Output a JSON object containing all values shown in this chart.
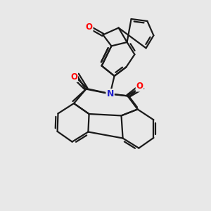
{
  "background_color": "#e8e8e8",
  "bond_color": "#1a1a1a",
  "oxygen_color": "#ff0000",
  "nitrogen_color": "#2222cc",
  "bond_width": 1.6,
  "dbl_sep": 0.1,
  "figsize": [
    3.0,
    3.0
  ],
  "dpi": 100,
  "xlim": [
    0,
    10
  ],
  "ylim": [
    0,
    10
  ]
}
